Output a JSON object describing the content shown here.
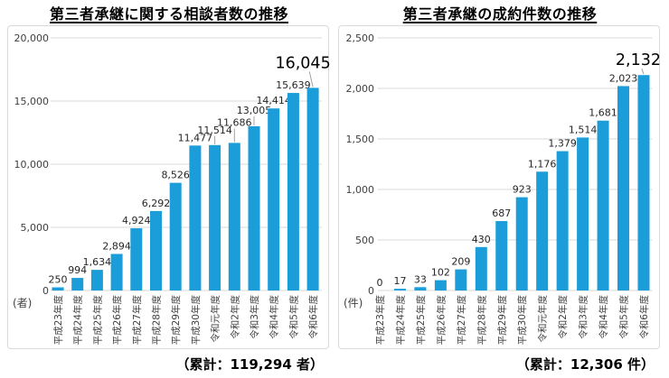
{
  "colors": {
    "bar": "#1A9DD8",
    "gridline": "#D9D9D9",
    "frame_border": "#D9D9D9",
    "tick_text": "#404040",
    "label_text": "#262626",
    "title_text": "#000000",
    "leader_line": "#A0A0A0",
    "background": "#FFFFFF"
  },
  "chart_data": [
    {
      "type": "bar",
      "title": "第三者承継に関する相談者数の推移",
      "unit_label": "(者)",
      "cumulative_note": "（累計：119,294 者）",
      "categories": [
        "平成23年度",
        "平成24年度",
        "平成25年度",
        "平成26年度",
        "平成27年度",
        "平成28年度",
        "平成29年度",
        "平成30年度",
        "令和元年度",
        "令和2年度",
        "令和3年度",
        "令和4年度",
        "令和5年度",
        "令和6年度"
      ],
      "values": [
        250,
        994,
        1634,
        2894,
        4924,
        6292,
        8526,
        11477,
        11514,
        11686,
        13005,
        14414,
        15639,
        16045
      ],
      "value_labels": [
        "250",
        "994",
        "1,634",
        "2,894",
        "4,924",
        "6,292",
        "8,526",
        "11,477",
        "11,514",
        "11,686",
        "13,005",
        "14,414",
        "15,639",
        "16,045"
      ],
      "ylim": [
        0,
        20000
      ],
      "ytick_labels": [
        "0",
        "5,000",
        "10,000",
        "15,000",
        "20,000"
      ],
      "grid": true,
      "legend": "none",
      "label_raise": [
        0,
        0,
        0,
        0,
        0,
        0,
        0,
        0,
        8,
        14,
        9,
        0,
        0,
        12
      ],
      "big_label_index": 13,
      "big_label_dx": -11,
      "layout": {
        "axis_label_x": 46,
        "grid_x1": 48,
        "grid_x2": 348,
        "first_cx": 56,
        "slot": 21.7
      }
    },
    {
      "type": "bar",
      "title": "第三者承継の成約件数の推移",
      "unit_label": "(件)",
      "cumulative_note": "（累計：12,306 件）",
      "categories": [
        "平成23年度",
        "平成24年度",
        "平成25年度",
        "平成26年度",
        "平成27年度",
        "平成28年度",
        "平成29年度",
        "平成30年度",
        "令和元年度",
        "令和2年度",
        "令和3年度",
        "令和4年度",
        "令和5年度",
        "令和6年度"
      ],
      "values": [
        0,
        17,
        33,
        102,
        209,
        430,
        687,
        923,
        1176,
        1379,
        1514,
        1681,
        2023,
        2132
      ],
      "value_labels": [
        "0",
        "17",
        "33",
        "102",
        "209",
        "430",
        "687",
        "923",
        "1,176",
        "1,379",
        "1,514",
        "1,681",
        "2,023",
        "2,132"
      ],
      "ylim": [
        0,
        2500
      ],
      "ytick_labels": [
        "0",
        "500",
        "1,000",
        "1,500",
        "2,000",
        "2,500"
      ],
      "grid": true,
      "legend": "none",
      "label_raise": [
        0,
        0,
        0,
        0,
        0,
        0,
        0,
        0,
        0,
        0,
        0,
        0,
        0,
        1
      ],
      "big_label_index": 13,
      "big_label_dx": -6,
      "layout": {
        "axis_label_x": 40,
        "grid_x1": 44,
        "grid_x2": 348,
        "first_cx": 46,
        "slot": 22.46
      }
    }
  ]
}
